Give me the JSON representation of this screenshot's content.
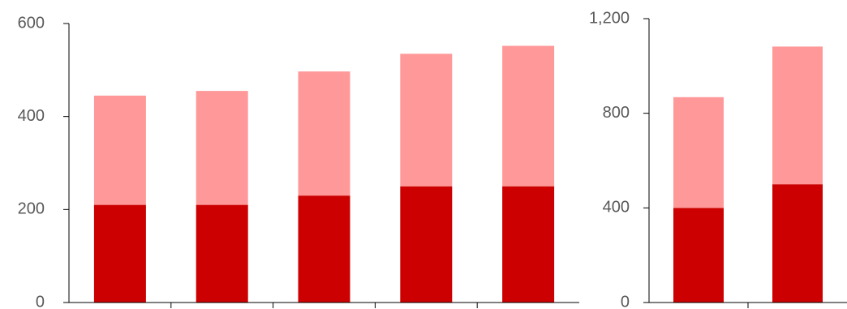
{
  "chart_data": [
    {
      "type": "bar",
      "stacked": true,
      "categories": [
        "",
        "",
        "",
        "",
        ""
      ],
      "series": [
        {
          "values": [
            210,
            210,
            230,
            250,
            250
          ],
          "color": "#cc0000"
        },
        {
          "values": [
            235,
            245,
            267,
            285,
            302
          ],
          "color": "#ff9999"
        }
      ],
      "ylim": [
        0,
        600
      ],
      "yticks": [
        0,
        200,
        400,
        600
      ],
      "ytick_labels": [
        "0",
        "200",
        "400",
        "600"
      ],
      "grid": false,
      "legend": false
    },
    {
      "type": "bar",
      "stacked": true,
      "categories": [
        "",
        ""
      ],
      "series": [
        {
          "values": [
            400,
            500
          ],
          "color": "#cc0000"
        },
        {
          "values": [
            468,
            582
          ],
          "color": "#ff9999"
        }
      ],
      "ylim": [
        0,
        1200
      ],
      "yticks": [
        0,
        400,
        800,
        1200
      ],
      "ytick_labels": [
        "0",
        "400",
        "800",
        "1,200"
      ],
      "grid": false,
      "legend": false
    }
  ]
}
